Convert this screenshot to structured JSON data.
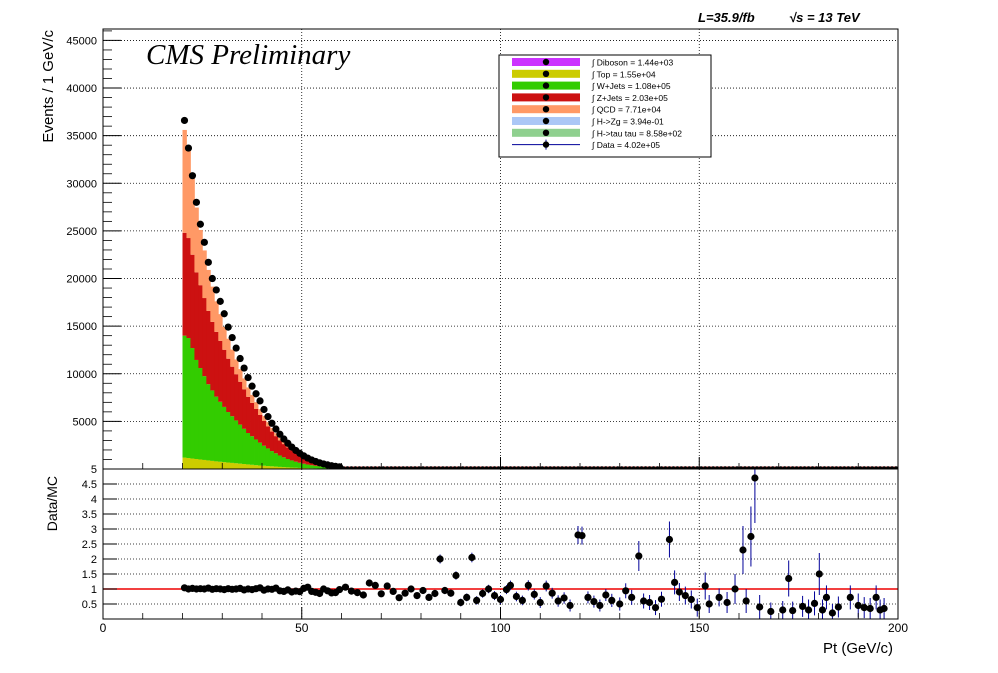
{
  "header": {
    "cms_label": "CMS Preliminary",
    "lumi_label": "L=35.9/fb",
    "energy_label": "√s = 13 TeV"
  },
  "colors": {
    "diboson": "#cc33ff",
    "top": "#cccc00",
    "wjets": "#33cc00",
    "zjets": "#cc1111",
    "qcd": "#ff9966",
    "hzg": "#6699ee",
    "htautau": "#33aa33",
    "data": "#000000",
    "data_line": "#000099",
    "ratio_line": "#ee0000"
  },
  "legend": {
    "entries": [
      {
        "key": "diboson",
        "label": "∫ Diboson = 1.44e+03"
      },
      {
        "key": "top",
        "label": "∫ Top = 1.55e+04"
      },
      {
        "key": "wjets",
        "label": "∫ W+Jets = 1.08e+05"
      },
      {
        "key": "zjets",
        "label": "∫ Z+Jets = 2.03e+05"
      },
      {
        "key": "qcd",
        "label": "∫ QCD = 7.71e+04"
      },
      {
        "key": "hzg",
        "label": "∫ H->Zg = 3.94e-01"
      },
      {
        "key": "htautau",
        "label": "∫ H->tau tau = 8.58e+02"
      },
      {
        "key": "data",
        "label": "∫ Data = 4.02e+05"
      }
    ]
  },
  "chart_data": [
    {
      "type": "bar",
      "stacked": true,
      "xlabel": "",
      "ylabel": "Events / 1 GeV/c",
      "xlim": [
        0,
        200
      ],
      "ylim": [
        0,
        46200
      ],
      "yticks": [
        5000,
        10000,
        15000,
        20000,
        25000,
        30000,
        35000,
        40000,
        45000
      ],
      "ytick_labels": [
        "5000",
        "10000",
        "15000",
        "20000",
        "25000",
        "30000",
        "35000",
        "40000",
        "45000"
      ],
      "grid": true,
      "legend_position": "top-right",
      "x_start": 20,
      "bin_width": 1,
      "series": [
        {
          "name": "Top",
          "key": "top",
          "values": [
            1200,
            1150,
            1100,
            1050,
            1000,
            950,
            900,
            850,
            800,
            760,
            720,
            680,
            640,
            600,
            560,
            520,
            480,
            440,
            400,
            370,
            340,
            310,
            280,
            250,
            220,
            195,
            170,
            150,
            130,
            115,
            100,
            88,
            76,
            66,
            57,
            49,
            42,
            36,
            30,
            25
          ]
        },
        {
          "name": "W+Jets",
          "key": "wjets",
          "values": [
            12800,
            12600,
            11600,
            10400,
            9600,
            8800,
            8000,
            7400,
            6800,
            6300,
            5800,
            5300,
            4900,
            4500,
            4100,
            3700,
            3300,
            3000,
            2700,
            2400,
            2100,
            1850,
            1600,
            1400,
            1200,
            1030,
            880,
            750,
            640,
            540,
            450,
            380,
            320,
            270,
            225,
            185,
            150,
            120,
            95,
            75
          ]
        },
        {
          "name": "Z+Jets",
          "key": "zjets",
          "values": [
            10800,
            10500,
            9800,
            9200,
            8700,
            8200,
            7700,
            7200,
            6800,
            6400,
            6000,
            5600,
            5200,
            4850,
            4500,
            4150,
            3800,
            3500,
            3200,
            2900,
            2600,
            2320,
            2050,
            1800,
            1580,
            1390,
            1210,
            1050,
            910,
            780,
            670,
            570,
            480,
            400,
            330,
            270,
            220,
            180,
            145,
            115
          ]
        },
        {
          "name": "QCD",
          "key": "qcd",
          "values": [
            10800,
            9600,
            8100,
            6800,
            5800,
            5000,
            4300,
            3700,
            3200,
            2800,
            2400,
            2100,
            1800,
            1550,
            1330,
            1140,
            980,
            840,
            720,
            610,
            520,
            440,
            370,
            310,
            260,
            220,
            185,
            155,
            130,
            108,
            90,
            75,
            62,
            51,
            42,
            35,
            28,
            23,
            19,
            15
          ]
        }
      ],
      "data": {
        "name": "Data",
        "values": [
          36600,
          33700,
          30800,
          28000,
          25700,
          23800,
          21700,
          20000,
          18800,
          17600,
          16300,
          14900,
          13800,
          12700,
          11600,
          10600,
          9600,
          8700,
          7900,
          7150,
          6250,
          5500,
          4800,
          4200,
          3650,
          3150,
          2700,
          2300,
          1950,
          1650,
          1380,
          1150,
          950,
          790,
          650,
          530,
          430,
          350,
          280,
          225
        ]
      },
      "tail": {
        "x_range": [
          60,
          200
        ],
        "note_values": [
          150,
          80,
          40
        ]
      }
    },
    {
      "type": "scatter",
      "xlabel": "Pt (GeV/c)",
      "ylabel": "Data/MC",
      "xlim": [
        0,
        200
      ],
      "ylim": [
        0,
        5
      ],
      "xticks": [
        0,
        50,
        100,
        150,
        200
      ],
      "xtick_labels": [
        "0",
        "50",
        "100",
        "150",
        "200"
      ],
      "yticks": [
        0.5,
        1,
        1.5,
        2,
        2.5,
        3,
        3.5,
        4,
        4.5,
        5
      ],
      "ytick_labels": [
        "0.5",
        "1",
        "1.5",
        "2",
        "2.5",
        "3",
        "3.5",
        "4",
        "4.5",
        "5"
      ],
      "reference_line": 1,
      "grid": true,
      "points": [
        {
          "x": 20.5,
          "y": 1.04,
          "e": 0.02
        },
        {
          "x": 21.5,
          "y": 1.0,
          "e": 0.02
        },
        {
          "x": 22.5,
          "y": 1.02,
          "e": 0.02
        },
        {
          "x": 23.5,
          "y": 1.0,
          "e": 0.02
        },
        {
          "x": 24.5,
          "y": 1.01,
          "e": 0.02
        },
        {
          "x": 25.5,
          "y": 1.0,
          "e": 0.02
        },
        {
          "x": 26.5,
          "y": 1.03,
          "e": 0.02
        },
        {
          "x": 27.5,
          "y": 0.99,
          "e": 0.02
        },
        {
          "x": 28.5,
          "y": 1.01,
          "e": 0.02
        },
        {
          "x": 29.5,
          "y": 1.0,
          "e": 0.02
        },
        {
          "x": 30.5,
          "y": 0.98,
          "e": 0.02
        },
        {
          "x": 31.5,
          "y": 1.01,
          "e": 0.02
        },
        {
          "x": 32.5,
          "y": 0.99,
          "e": 0.02
        },
        {
          "x": 33.5,
          "y": 1.0,
          "e": 0.02
        },
        {
          "x": 34.5,
          "y": 1.02,
          "e": 0.02
        },
        {
          "x": 35.5,
          "y": 0.97,
          "e": 0.03
        },
        {
          "x": 36.5,
          "y": 1.0,
          "e": 0.03
        },
        {
          "x": 37.5,
          "y": 0.98,
          "e": 0.03
        },
        {
          "x": 38.5,
          "y": 1.01,
          "e": 0.03
        },
        {
          "x": 39.5,
          "y": 1.04,
          "e": 0.03
        },
        {
          "x": 40.5,
          "y": 0.96,
          "e": 0.03
        },
        {
          "x": 41.5,
          "y": 1.0,
          "e": 0.03
        },
        {
          "x": 42.5,
          "y": 0.99,
          "e": 0.03
        },
        {
          "x": 43.5,
          "y": 1.03,
          "e": 0.03
        },
        {
          "x": 44.5,
          "y": 0.94,
          "e": 0.04
        },
        {
          "x": 45.5,
          "y": 0.92,
          "e": 0.04
        },
        {
          "x": 46.5,
          "y": 0.97,
          "e": 0.04
        },
        {
          "x": 47.5,
          "y": 0.9,
          "e": 0.04
        },
        {
          "x": 48.5,
          "y": 0.93,
          "e": 0.04
        },
        {
          "x": 49.5,
          "y": 0.91,
          "e": 0.05
        },
        {
          "x": 50.5,
          "y": 1.02,
          "e": 0.05
        },
        {
          "x": 51.5,
          "y": 1.06,
          "e": 0.05
        },
        {
          "x": 52.5,
          "y": 0.92,
          "e": 0.05
        },
        {
          "x": 53.5,
          "y": 0.89,
          "e": 0.06
        },
        {
          "x": 54.5,
          "y": 0.85,
          "e": 0.06
        },
        {
          "x": 55.5,
          "y": 1.0,
          "e": 0.06
        },
        {
          "x": 56.5,
          "y": 0.94,
          "e": 0.06
        },
        {
          "x": 57.5,
          "y": 0.87,
          "e": 0.07
        },
        {
          "x": 58.5,
          "y": 0.88,
          "e": 0.07
        },
        {
          "x": 59.5,
          "y": 0.98,
          "e": 0.07
        },
        {
          "x": 61,
          "y": 1.06,
          "e": 0.08
        },
        {
          "x": 62.5,
          "y": 0.93,
          "e": 0.08
        },
        {
          "x": 64,
          "y": 0.88,
          "e": 0.08
        },
        {
          "x": 65.5,
          "y": 0.8,
          "e": 0.08
        },
        {
          "x": 67,
          "y": 1.2,
          "e": 0.09
        },
        {
          "x": 68.5,
          "y": 1.12,
          "e": 0.09
        },
        {
          "x": 70,
          "y": 0.84,
          "e": 0.09
        },
        {
          "x": 71.5,
          "y": 1.1,
          "e": 0.1
        },
        {
          "x": 73,
          "y": 0.92,
          "e": 0.1
        },
        {
          "x": 74.5,
          "y": 0.71,
          "e": 0.1
        },
        {
          "x": 76,
          "y": 0.86,
          "e": 0.1
        },
        {
          "x": 77.5,
          "y": 1.0,
          "e": 0.11
        },
        {
          "x": 79,
          "y": 0.78,
          "e": 0.11
        },
        {
          "x": 80.5,
          "y": 0.95,
          "e": 0.11
        },
        {
          "x": 82,
          "y": 0.72,
          "e": 0.12
        },
        {
          "x": 83.5,
          "y": 0.85,
          "e": 0.12
        },
        {
          "x": 84.8,
          "y": 2.0,
          "e": 0.15
        },
        {
          "x": 86,
          "y": 0.95,
          "e": 0.12
        },
        {
          "x": 87.5,
          "y": 0.86,
          "e": 0.12
        },
        {
          "x": 88.8,
          "y": 1.45,
          "e": 0.14
        },
        {
          "x": 90,
          "y": 0.55,
          "e": 0.13
        },
        {
          "x": 91.5,
          "y": 0.72,
          "e": 0.13
        },
        {
          "x": 92.8,
          "y": 2.05,
          "e": 0.16
        },
        {
          "x": 94,
          "y": 0.62,
          "e": 0.14
        },
        {
          "x": 95.5,
          "y": 0.85,
          "e": 0.14
        },
        {
          "x": 97,
          "y": 1.0,
          "e": 0.14
        },
        {
          "x": 98.5,
          "y": 0.78,
          "e": 0.15
        },
        {
          "x": 100,
          "y": 0.65,
          "e": 0.15
        },
        {
          "x": 101.5,
          "y": 0.98,
          "e": 0.15
        },
        {
          "x": 102.5,
          "y": 1.12,
          "e": 0.16
        },
        {
          "x": 104,
          "y": 0.75,
          "e": 0.16
        },
        {
          "x": 105.5,
          "y": 0.62,
          "e": 0.16
        },
        {
          "x": 107,
          "y": 1.12,
          "e": 0.17
        },
        {
          "x": 108.5,
          "y": 0.82,
          "e": 0.17
        },
        {
          "x": 110,
          "y": 0.55,
          "e": 0.18
        },
        {
          "x": 111.5,
          "y": 1.1,
          "e": 0.18
        },
        {
          "x": 113,
          "y": 0.86,
          "e": 0.18
        },
        {
          "x": 114.5,
          "y": 0.6,
          "e": 0.19
        },
        {
          "x": 116,
          "y": 0.7,
          "e": 0.19
        },
        {
          "x": 117.5,
          "y": 0.45,
          "e": 0.2
        },
        {
          "x": 119.5,
          "y": 2.8,
          "e": 0.3
        },
        {
          "x": 120.5,
          "y": 2.78,
          "e": 0.3
        },
        {
          "x": 122,
          "y": 0.72,
          "e": 0.2
        },
        {
          "x": 123.5,
          "y": 0.58,
          "e": 0.2
        },
        {
          "x": 125,
          "y": 0.45,
          "e": 0.2
        },
        {
          "x": 126.5,
          "y": 0.8,
          "e": 0.2
        },
        {
          "x": 128,
          "y": 0.62,
          "e": 0.22
        },
        {
          "x": 130,
          "y": 0.5,
          "e": 0.22
        },
        {
          "x": 131.5,
          "y": 0.94,
          "e": 0.25
        },
        {
          "x": 133,
          "y": 0.72,
          "e": 0.25
        },
        {
          "x": 134.8,
          "y": 2.1,
          "e": 0.5
        },
        {
          "x": 136,
          "y": 0.6,
          "e": 0.25
        },
        {
          "x": 137.5,
          "y": 0.55,
          "e": 0.25
        },
        {
          "x": 139,
          "y": 0.38,
          "e": 0.25
        },
        {
          "x": 140.5,
          "y": 0.66,
          "e": 0.25
        },
        {
          "x": 142.5,
          "y": 2.65,
          "e": 0.6
        },
        {
          "x": 143.8,
          "y": 1.22,
          "e": 0.4
        },
        {
          "x": 145,
          "y": 0.9,
          "e": 0.3
        },
        {
          "x": 146.5,
          "y": 0.78,
          "e": 0.3
        },
        {
          "x": 148,
          "y": 0.65,
          "e": 0.3
        },
        {
          "x": 149.5,
          "y": 0.38,
          "e": 0.3
        },
        {
          "x": 151.5,
          "y": 1.1,
          "e": 0.45
        },
        {
          "x": 152.5,
          "y": 0.5,
          "e": 0.3
        },
        {
          "x": 155,
          "y": 0.72,
          "e": 0.3
        },
        {
          "x": 157,
          "y": 0.55,
          "e": 0.35
        },
        {
          "x": 159,
          "y": 1.0,
          "e": 0.5
        },
        {
          "x": 161,
          "y": 2.3,
          "e": 0.8
        },
        {
          "x": 161.8,
          "y": 0.6,
          "e": 0.4
        },
        {
          "x": 163,
          "y": 2.75,
          "e": 1.0
        },
        {
          "x": 164,
          "y": 4.7,
          "e": 1.5
        },
        {
          "x": 165.2,
          "y": 0.4,
          "e": 0.4
        },
        {
          "x": 168,
          "y": 0.25,
          "e": 0.3
        },
        {
          "x": 171,
          "y": 0.3,
          "e": 0.3
        },
        {
          "x": 172.5,
          "y": 1.35,
          "e": 0.6
        },
        {
          "x": 173.5,
          "y": 0.28,
          "e": 0.3
        },
        {
          "x": 176,
          "y": 0.42,
          "e": 0.35
        },
        {
          "x": 177.5,
          "y": 0.3,
          "e": 0.35
        },
        {
          "x": 179,
          "y": 0.52,
          "e": 0.4
        },
        {
          "x": 180.2,
          "y": 1.5,
          "e": 0.7
        },
        {
          "x": 181,
          "y": 0.3,
          "e": 0.35
        },
        {
          "x": 182,
          "y": 0.72,
          "e": 0.4
        },
        {
          "x": 183.5,
          "y": 0.2,
          "e": 0.3
        },
        {
          "x": 185,
          "y": 0.4,
          "e": 0.35
        },
        {
          "x": 188,
          "y": 0.72,
          "e": 0.4
        },
        {
          "x": 190,
          "y": 0.45,
          "e": 0.4
        },
        {
          "x": 191.5,
          "y": 0.38,
          "e": 0.35
        },
        {
          "x": 193,
          "y": 0.35,
          "e": 0.35
        },
        {
          "x": 194.5,
          "y": 0.72,
          "e": 0.4
        },
        {
          "x": 195.5,
          "y": 0.3,
          "e": 0.35
        },
        {
          "x": 196.5,
          "y": 0.35,
          "e": 0.35
        }
      ]
    }
  ]
}
